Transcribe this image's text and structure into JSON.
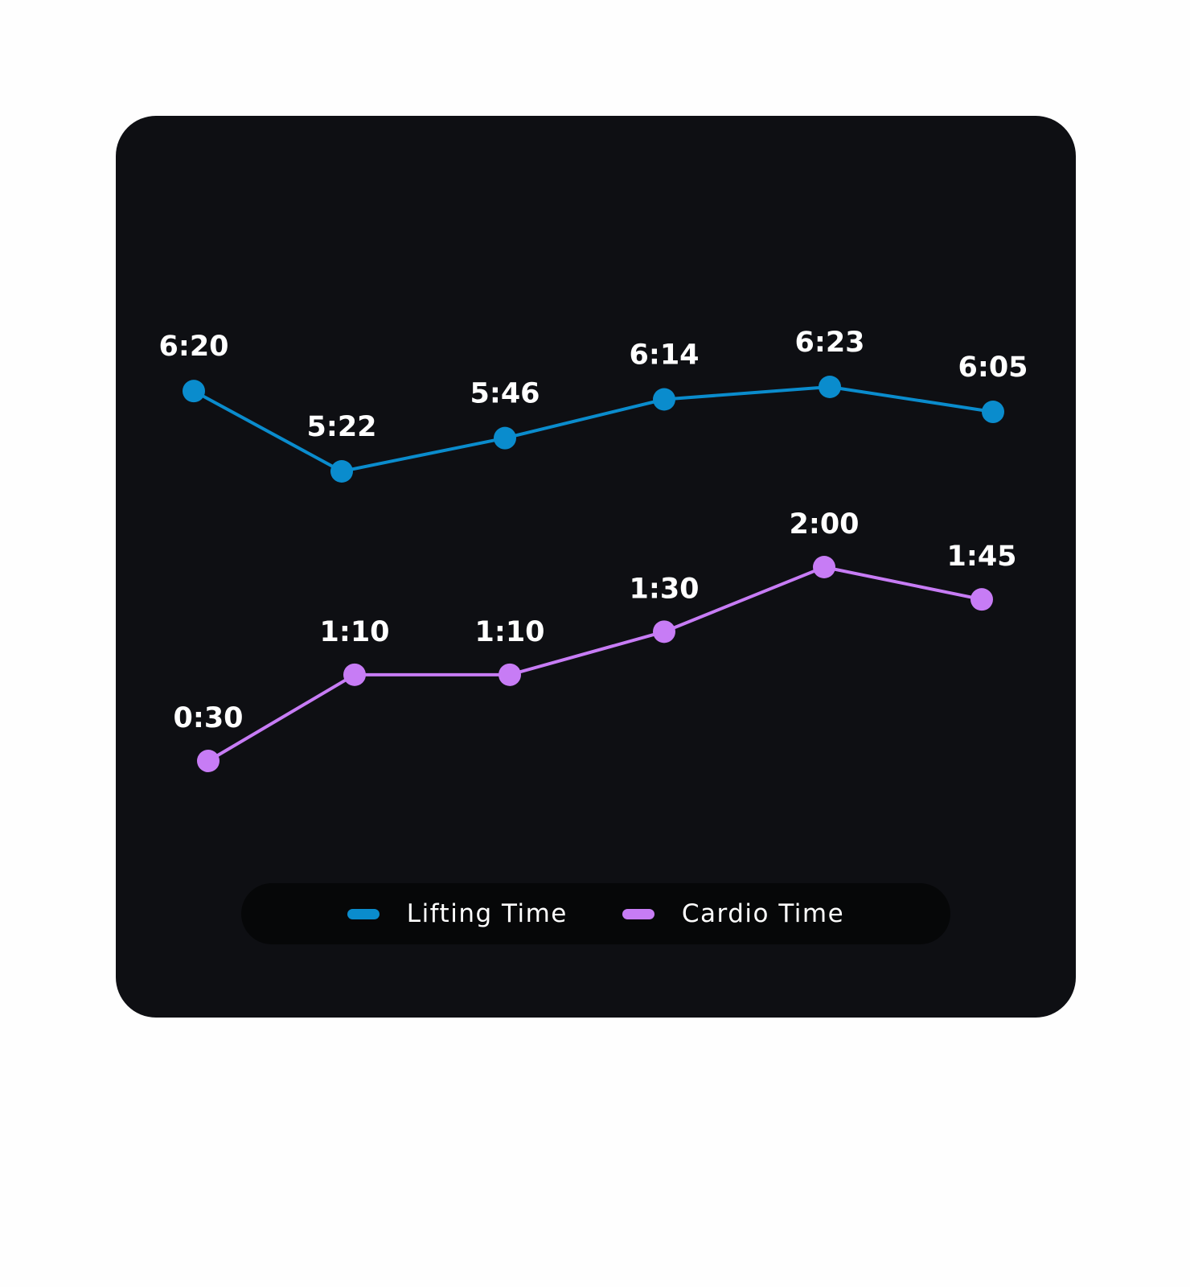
{
  "chart_data": {
    "type": "line",
    "x": [
      1,
      2,
      3,
      4,
      5,
      6
    ],
    "series": [
      {
        "name": "Lifting Time",
        "color": "#0a8ccd",
        "values": [
          6.333,
          5.367,
          5.767,
          6.233,
          6.383,
          6.083
        ],
        "labels": [
          "6:20",
          "5:22",
          "5:46",
          "6:14",
          "6:23",
          "6:05"
        ]
      },
      {
        "name": "Cardio Time",
        "color": "#c77cf5",
        "values": [
          0.5,
          1.167,
          1.167,
          1.5,
          2.0,
          1.75
        ],
        "labels": [
          "0:30",
          "1:10",
          "1:10",
          "1:30",
          "2:00",
          "1:45"
        ]
      }
    ],
    "grid": false,
    "legend_position": "bottom-center"
  }
}
